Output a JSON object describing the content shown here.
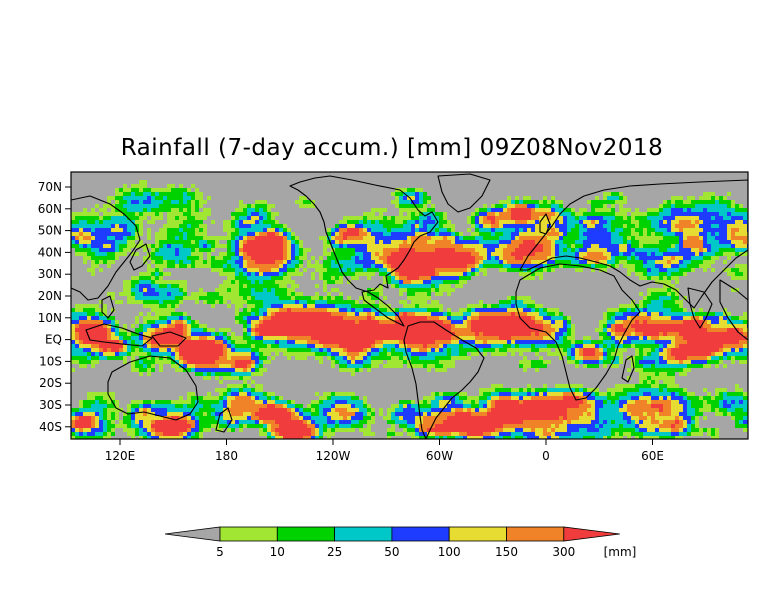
{
  "title": "Rainfall (7-day accum.) [mm] 09Z08Nov2018",
  "colors": {
    "background": "#ffffff",
    "no_data": "#a6a6a6",
    "frame": "#000000",
    "bins": [
      "#a6a6a6",
      "#a0e632",
      "#00d200",
      "#00c8c8",
      "#1e3cff",
      "#e6dc32",
      "#f08228",
      "#f03c3c"
    ]
  },
  "latitude_labels": [
    "70N",
    "60N",
    "50N",
    "40N",
    "30N",
    "20N",
    "10N",
    "EQ",
    "10S",
    "20S",
    "30S",
    "40S"
  ],
  "longitude_labels": [
    "120E",
    "180",
    "120W",
    "60W",
    "0",
    "60E"
  ],
  "colorbar": {
    "boundaries": [
      "5",
      "10",
      "25",
      "50",
      "100",
      "150",
      "300"
    ],
    "unit": "[mm]"
  },
  "map_data": {
    "variable": "Rainfall (7-day accumulation)",
    "units": "mm",
    "valid_time": "09Z08Nov2018",
    "lat_range": [
      -48,
      75
    ],
    "lon_range": [
      "110E",
      "100E"
    ],
    "color_scale_breaks_mm": [
      5,
      10,
      25,
      50,
      100,
      150,
      300
    ]
  }
}
